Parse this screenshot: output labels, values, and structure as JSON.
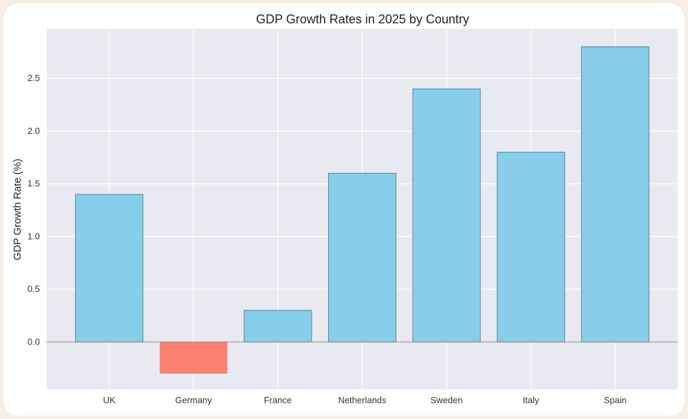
{
  "chart_data": {
    "type": "bar",
    "title": "GDP Growth Rates in 2025 by Country",
    "xlabel": "",
    "ylabel": "GDP Growth Rate (%)",
    "categories": [
      "UK",
      "Germany",
      "France",
      "Netherlands",
      "Sweden",
      "Italy",
      "Spain"
    ],
    "values": [
      1.4,
      -0.3,
      0.3,
      1.6,
      2.4,
      1.8,
      2.8
    ],
    "ylim": [
      -0.45,
      2.97
    ],
    "yticks": [
      0.0,
      0.5,
      1.0,
      1.5,
      2.0,
      2.5
    ],
    "ytick_labels": [
      "0.0",
      "0.5",
      "1.0",
      "1.5",
      "2.0",
      "2.5"
    ],
    "grid": true,
    "colors": {
      "positive": "#87ceeb",
      "negative": "#fa8072",
      "edge": "#5f7f8f",
      "plot_bg": "#e9e9f1",
      "zero_line": "#888888"
    }
  }
}
